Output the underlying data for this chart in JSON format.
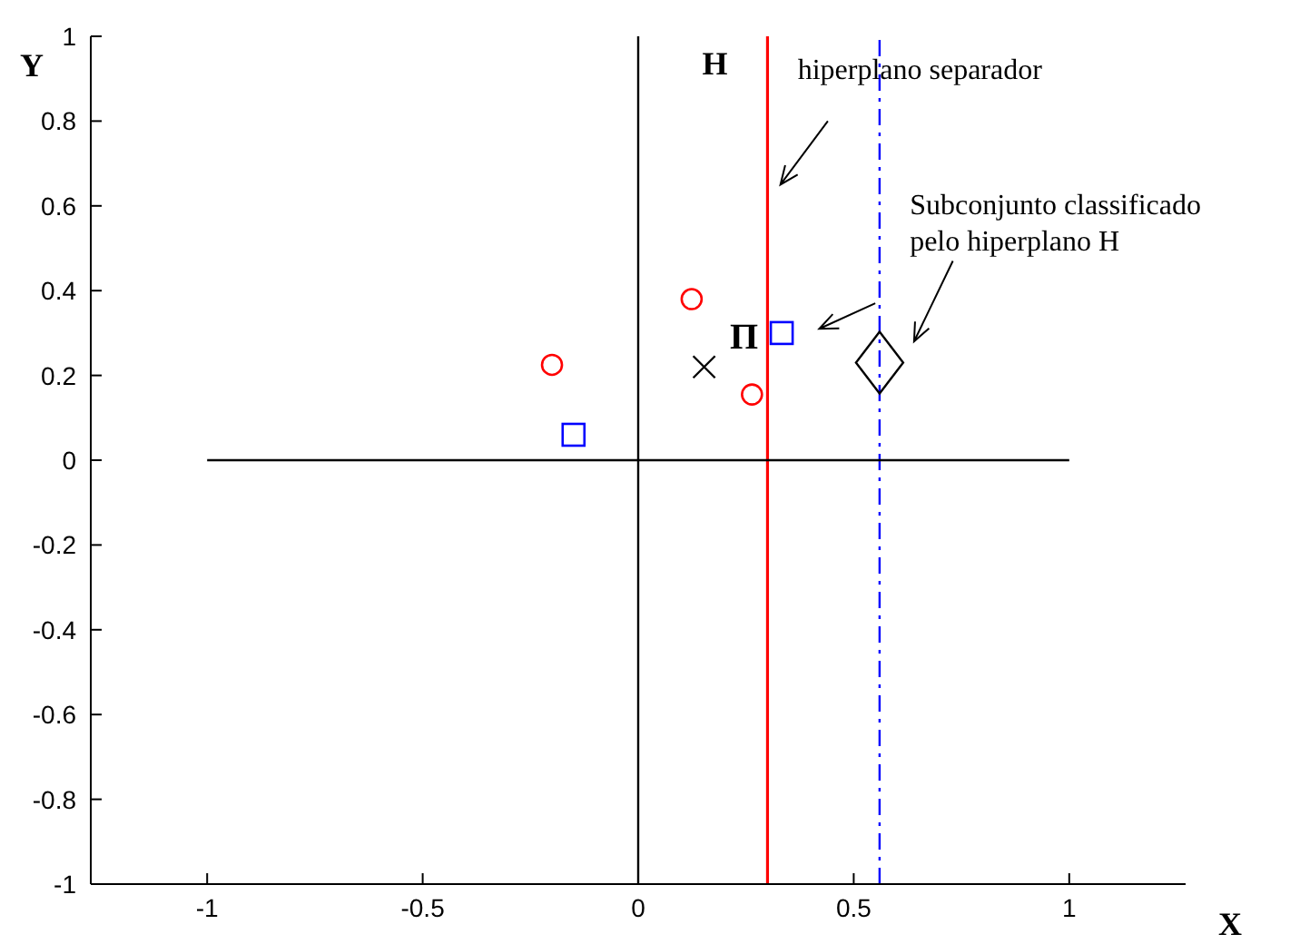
{
  "chart_data": {
    "type": "scatter",
    "xlabel": "X",
    "ylabel": "Y",
    "xlim": [
      -1.27,
      1.27
    ],
    "ylim": [
      -1,
      1
    ],
    "xticks": [
      -1,
      -0.5,
      0,
      0.5,
      1
    ],
    "yticks": [
      -1,
      -0.8,
      -0.6,
      -0.4,
      -0.2,
      0,
      0.2,
      0.4,
      0.6,
      0.8,
      1
    ],
    "grid": false,
    "legend": false,
    "series": [
      {
        "type": "line",
        "color": "#000000",
        "x": [
          -1,
          1
        ],
        "values": [
          0,
          0
        ],
        "marker": "none",
        "line_style": "solid"
      },
      {
        "type": "scatter",
        "color": "#ff0000",
        "x": [
          -0.2,
          0.124,
          0.264
        ],
        "values": [
          0.225,
          0.38,
          0.155
        ],
        "marker": "circle"
      },
      {
        "type": "scatter",
        "color": "#0000ff",
        "x": [
          -0.15,
          0.333
        ],
        "values": [
          0.06,
          0.3
        ],
        "marker": "square"
      },
      {
        "type": "scatter",
        "color": "#000000",
        "x": [
          0.153
        ],
        "values": [
          0.22
        ],
        "marker": "cross"
      },
      {
        "type": "scatter",
        "color": "#000000",
        "x": [
          0.56
        ],
        "values": [
          0.23
        ],
        "marker": "diamond"
      }
    ],
    "ref_lines": [
      {
        "axis": "x",
        "value": 0,
        "color": "#000000",
        "line_style": "solid"
      },
      {
        "axis": "x",
        "value": 0.3,
        "label": "H",
        "color": "#ff0000",
        "line_style": "solid"
      },
      {
        "axis": "x",
        "value": 0.56,
        "color": "#0000ff",
        "line_style": "dashed"
      }
    ],
    "annotations": [
      {
        "text": "Π",
        "x": 0.153,
        "y": 0.22
      },
      "hiperplano separador",
      "Subconjunto classificado pelo hiperplano H"
    ]
  }
}
